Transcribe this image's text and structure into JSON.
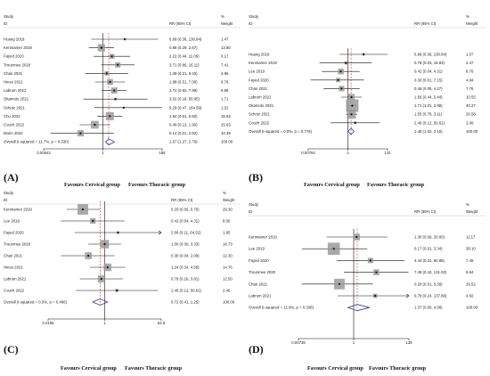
{
  "panels": [
    {
      "letter": "(A)",
      "header": {
        "study": "Study",
        "id": "ID",
        "rr": "RR (95% CI)",
        "pct": "%",
        "weight": "Weight"
      },
      "favours_left": "Favours Cervical group",
      "favours_right": "Favours Thoracic group",
      "chart_data": {
        "type": "forest",
        "x_scale": "log",
        "ticks": [
          {
            "value": 0.00542,
            "label": "0.00542"
          },
          {
            "value": 1,
            "label": "1"
          },
          {
            "value": 185,
            "label": "185"
          }
        ],
        "xlim": [
          0.00542,
          185
        ],
        "studies": [
          {
            "name": "Huang 2019",
            "rr": 6.89,
            "lo": 0.36,
            "hi": 130.84,
            "ci_text": "6.89 (0.36, 130.84)",
            "weight": "1.47"
          },
          {
            "name": "Kenmamer 2019",
            "rr": 0.88,
            "lo": 0.29,
            "hi": 2.67,
            "ci_text": "0.88 (0.29, 2.67)",
            "weight": "13.80"
          },
          {
            "name": "Fayed 2020",
            "rr": 2.22,
            "lo": 0.44,
            "hi": 11.06,
            "ci_text": "2.22 (0.44, 11.06)",
            "weight": "6.17"
          },
          {
            "name": "Trounmee 2020",
            "rr": 3.71,
            "lo": 0.86,
            "hi": 16.11,
            "ci_text": "3.71 (0.86, 16.11)",
            "weight": "7.41"
          },
          {
            "name": "Chan 2021",
            "rr": 1.39,
            "lo": 0.21,
            "hi": 9.4,
            "ci_text": "1.39 (0.21, 9.40)",
            "weight": "4.86"
          },
          {
            "name": "Hines 2021",
            "rr": 1.88,
            "lo": 0.51,
            "hi": 7.0,
            "ci_text": "1.88 (0.51, 7.00)",
            "weight": "8.76"
          },
          {
            "name": "Labrum 2021",
            "rr": 2.72,
            "lo": 0.92,
            "hi": 7.98,
            "ci_text": "2.72 (0.92, 7.98)",
            "weight": "9.88"
          },
          {
            "name": "Okamoto 2021",
            "rr": 3.02,
            "lo": 0.18,
            "hi": 50.85,
            "ci_text": "3.02 (0.18, 50.85)",
            "weight": "1.71"
          },
          {
            "name": "Schotz 2021",
            "rr": 6.29,
            "lo": 0.47,
            "hi": 184.59,
            "ci_text": "6.29 (0.47, 184.59)",
            "weight": "1.02"
          },
          {
            "name": "Chu 2022",
            "rr": 1.84,
            "lo": 0.61,
            "hi": 5.5,
            "ci_text": "1.84 (0.61, 5.50)",
            "weight": "16.63"
          },
          {
            "name": "Couch 2022",
            "rr": 0.49,
            "lo": 0.13,
            "hi": 1.9,
            "ci_text": "0.49 (0.13, 1.90)",
            "weight": "15.63"
          },
          {
            "name": "Morin 2022",
            "rr": 0.14,
            "lo": 0.01,
            "hi": 2.62,
            "ci_text": "0.14 (0.01, 2.62)",
            "weight": "10.39"
          }
        ],
        "overall": {
          "label": "Overall (I-squared = 11.7%, p = 0.330)",
          "rr": 1.67,
          "lo": 1.27,
          "hi": 2.76,
          "ci_text": "1.67 (1.27, 2.76)",
          "weight": "100.00"
        }
      }
    },
    {
      "letter": "(B)",
      "header": {
        "study": "Study",
        "id": "ID",
        "rr": "RR (95% CI)",
        "pct": "%",
        "weight": "Weight"
      },
      "favours_left": "Favours Cervical group",
      "favours_right": "Favours Thoracic group",
      "chart_data": {
        "type": "forest",
        "x_scale": "log",
        "ticks": [
          {
            "value": 0.00764,
            "label": "0.00764"
          },
          {
            "value": 1,
            "label": "1"
          },
          {
            "value": 131,
            "label": "131"
          }
        ],
        "xlim": [
          0.00764,
          131
        ],
        "studies": [
          {
            "name": "Huang 2019",
            "rr": 6.89,
            "lo": 0.36,
            "hi": 130.84,
            "ci_text": "6.89 (0.36, 130.84)",
            "weight": "1.57"
          },
          {
            "name": "Kenmamer 2019",
            "rr": 0.78,
            "lo": 0.03,
            "hi": 18.83,
            "ci_text": "0.78 (0.03, 18.83)",
            "weight": "2.47"
          },
          {
            "name": "Lee 2019",
            "rr": 0.42,
            "lo": 0.04,
            "hi": 4.31,
            "ci_text": "0.42 (0.04, 4.31)",
            "weight": "8.76"
          },
          {
            "name": "Fayed 2020",
            "rr": 0.3,
            "lo": 0.01,
            "hi": 7.15,
            "ci_text": "0.30 (0.01, 7.15)",
            "weight": "4.84"
          },
          {
            "name": "Chan 2021",
            "rr": 0.46,
            "lo": 0.05,
            "hi": 4.27,
            "ci_text": "0.46 (0.05, 4.27)",
            "weight": "7.76"
          },
          {
            "name": "Labrum 2021",
            "rr": 1.56,
            "lo": 0.44,
            "hi": 5.44,
            "ci_text": "1.56 (0.44, 5.44)",
            "weight": "10.55"
          },
          {
            "name": "Okamoto 2021",
            "rr": 1.71,
            "lo": 1.01,
            "hi": 2.89,
            "ci_text": "1.71 (1.01, 2.89)",
            "weight": "40.27"
          },
          {
            "name": "Schotz 2021",
            "rr": 1.55,
            "lo": 0.78,
            "hi": 3.11,
            "ci_text": "1.55 (0.78, 3.11)",
            "weight": "20.58"
          },
          {
            "name": "Couch 2022",
            "rr": 2.46,
            "lo": 0.12,
            "hi": 50.61,
            "ci_text": "2.46 (0.12, 50.61)",
            "weight": "2.06"
          }
        ],
        "overall": {
          "label": "Overall (I-squared = 0.0%, p = 0.776)",
          "rr": 1.48,
          "lo": 1.02,
          "hi": 2.15,
          "ci_text": "1.48 (1.02, 2.15)",
          "weight": "100.00"
        }
      }
    },
    {
      "letter": "(C)",
      "header": {
        "study": "Study",
        "id": "ID",
        "rr": "RR (95% CI)",
        "pct": "%",
        "weight": "Weight"
      },
      "favours_left": "Favours Cervical group",
      "favours_right": "Favours Thoracic group",
      "chart_data": {
        "type": "forest",
        "x_scale": "log",
        "ticks": [
          {
            "value": 0.0155,
            "label": "0.0155"
          },
          {
            "value": 1,
            "label": "1"
          },
          {
            "value": 64.5,
            "label": "64.5"
          }
        ],
        "xlim": [
          0.0155,
          64.5
        ],
        "studies": [
          {
            "name": "Kenmamer 2019",
            "rr": 0.2,
            "lo": 0.06,
            "hi": 0.7,
            "ci_text": "0.20 (0.06, 0.70)",
            "weight": "29.30"
          },
          {
            "name": "Lee 2019",
            "rr": 0.42,
            "lo": 0.04,
            "hi": 4.31,
            "ci_text": "0.42 (0.04, 4.31)",
            "weight": "8.00"
          },
          {
            "name": "Fayed 2020",
            "rr": 2.66,
            "lo": 0.11,
            "hi": 64.52,
            "ci_text": "2.66 (0.11, 64.52)",
            "weight": "1.85"
          },
          {
            "name": "Trounmee 2020",
            "rr": 1.0,
            "lo": 0.3,
            "hi": 3.33,
            "ci_text": "1.00 (0.30, 3.33)",
            "weight": "18.73"
          },
          {
            "name": "Chan 2021",
            "rr": 0.3,
            "lo": 0.04,
            "hi": 2.08,
            "ci_text": "0.30 (0.04, 2.08)",
            "weight": "12.30"
          },
          {
            "name": "Hines 2021",
            "rr": 1.24,
            "lo": 0.34,
            "hi": 4.58,
            "ci_text": "1.24 (0.34, 4.58)",
            "weight": "14.76"
          },
          {
            "name": "Labrum 2021",
            "rr": 0.78,
            "lo": 0.16,
            "hi": 3.81,
            "ci_text": "0.78 (0.16, 3.81)",
            "weight": "12.50"
          },
          {
            "name": "Couch 2022",
            "rr": 2.46,
            "lo": 0.12,
            "hi": 50.61,
            "ci_text": "2.46 (0.12, 50.61)",
            "weight": "2.46"
          }
        ],
        "overall": {
          "label": "Overall (I-squared = 0.0%, p = 0.466)",
          "rr": 0.72,
          "lo": 0.41,
          "hi": 1.25,
          "ci_text": "0.72 (0.41, 1.25)",
          "weight": "100.00"
        }
      }
    },
    {
      "letter": "(D)",
      "header": {
        "study": "Study",
        "id": "ID",
        "rr": "RR (95% CI)",
        "pct": "%",
        "weight": "Weight"
      },
      "favours_left": "Favours Cervical group",
      "favours_right": "Favours Thoracic group",
      "chart_data": {
        "type": "forest",
        "x_scale": "log",
        "ticks": [
          {
            "value": 0.00735,
            "label": "0.00735"
          },
          {
            "value": 1,
            "label": "1"
          },
          {
            "value": 136,
            "label": "136"
          }
        ],
        "xlim": [
          0.00735,
          136
        ],
        "studies": [
          {
            "name": "Kenmamer 2019",
            "rr": 1.3,
            "lo": 0.09,
            "hi": 20.0,
            "ci_text": "1.30 (0.09, 20.00)",
            "weight": "11.17"
          },
          {
            "name": "Lee 2019",
            "rr": 0.17,
            "lo": 0.01,
            "hi": 3.34,
            "ci_text": "0.17 (0.01, 3.34)",
            "weight": "38.10"
          },
          {
            "name": "Fayed 2020",
            "rr": 4.44,
            "lo": 0.22,
            "hi": 90.88,
            "ci_text": "4.44 (0.22, 90.88)",
            "weight": "7.45"
          },
          {
            "name": "Trounmee 2020",
            "rr": 7.48,
            "lo": 0.42,
            "hi": 131.02,
            "ci_text": "7.48 (0.42, 131.02)",
            "weight": "8.94"
          },
          {
            "name": "Chan 2021",
            "rr": 0.28,
            "lo": 0.01,
            "hi": 5.58,
            "ci_text": "0.28 (0.01, 5.58)",
            "weight": "29.52"
          },
          {
            "name": "Labrum 2021",
            "rr": 6.78,
            "lo": 0.24,
            "hi": 137.86,
            "ci_text": "6.78 (0.24, 137.86)",
            "weight": "4.82"
          }
        ],
        "overall": {
          "label": "Overall (I-squared = 11.9%, p = 0.338)",
          "rr": 1.37,
          "lo": 0.6,
          "hi": 4.08,
          "ci_text": "1.37 (0.60, 4.08)",
          "weight": "100.00"
        }
      }
    }
  ],
  "colors": {
    "overall_diamond": "#2b3aa0",
    "pooled_line": "#c0392b",
    "weight_box": "#9a9a9a",
    "point": "#111111",
    "line": "#111111"
  }
}
